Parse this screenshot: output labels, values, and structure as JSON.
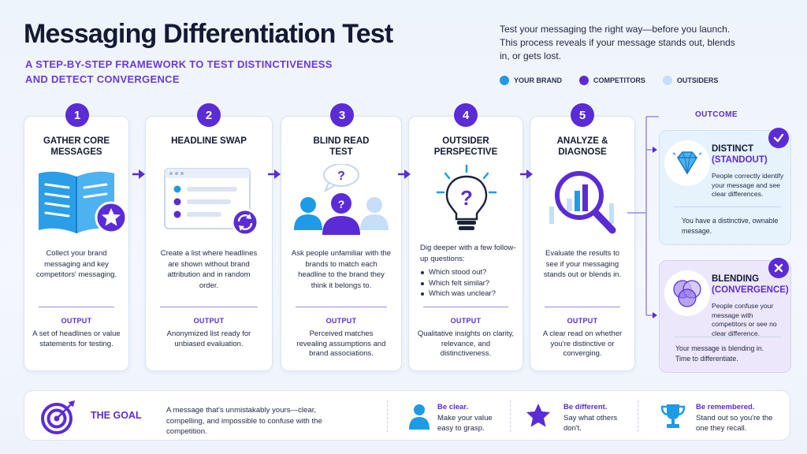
{
  "header": {
    "title": "Messaging Differentiation Test",
    "subtitle": "A STEP-BY-STEP FRAMEWORK TO TEST DISTINCTIVENESS AND DETECT CONVERGENCE",
    "intro": "Test your messaging the right way—before you launch. This process reveals if your message stands out, blends in, or gets lost."
  },
  "legend": [
    {
      "label": "YOUR BRAND",
      "color": "#1e9be6"
    },
    {
      "label": "COMPETITORS",
      "color": "#5b2bd6"
    },
    {
      "label": "OUTSIDERS",
      "color": "#c6def7"
    }
  ],
  "output_label": "OUTPUT",
  "steps": [
    {
      "number": "1",
      "title": "GATHER CORE MESSAGES",
      "icon": "open-book-star-icon",
      "description": "Collect your brand messaging and key competitors' messaging.",
      "output": "A set of headlines or value statements for testing."
    },
    {
      "number": "2",
      "title": "HEADLINE SWAP",
      "icon": "shuffled-list-window-icon",
      "description": "Create a list where headlines are shown without brand attribution and in random order.",
      "output": "Anonymized list ready for unbiased evaluation."
    },
    {
      "number": "3",
      "title": "BLIND READ TEST",
      "icon": "people-question-icon",
      "description": "Ask people unfamiliar with the brands to match each headline to the brand they think it belongs to.",
      "output": "Perceived matches revealing assumptions and brand associations."
    },
    {
      "number": "4",
      "title": "OUTSIDER PERSPECTIVE",
      "icon": "lightbulb-question-icon",
      "description": "Dig deeper with a few follow-up questions:",
      "questions": [
        "Which stood out?",
        "Which felt similar?",
        "Which was unclear?"
      ],
      "output": "Qualitative insights on clarity, relevance, and distinctiveness."
    },
    {
      "number": "5",
      "title": "ANALYZE & DIAGNOSE",
      "icon": "magnifier-chart-icon",
      "description": "Evaluate the results to see if your messaging stands out or blends in.",
      "output": "A clear read on whether you're distinctive or converging."
    }
  ],
  "outcome": {
    "label": "OUTCOME",
    "distinct": {
      "title": "DISTINCT",
      "sub": "(STANDOUT)",
      "description": "People correctly identify your message and see clear differences.",
      "result": "You have a distinctive, ownable message.",
      "icon": "diamond-icon"
    },
    "blending": {
      "title": "BLENDING",
      "sub": "(CONVERGENCE)",
      "description": "People confuse your message with competitors or see no clear difference.",
      "result": "Your message is blending in. Time to differentiate.",
      "icon": "overlapping-circles-icon"
    }
  },
  "goal": {
    "title": "THE GOAL",
    "text": "A message that's unmistakably yours—clear, compelling, and impossible to confuse with the competition.",
    "pillars": [
      {
        "title": "Be clear.",
        "text": "Make your value easy to grasp.",
        "icon": "person-icon"
      },
      {
        "title": "Be different.",
        "text": "Say what others don't.",
        "icon": "star-icon"
      },
      {
        "title": "Be remembered.",
        "text": "Stand out so you're the one they recall.",
        "icon": "trophy-icon"
      }
    ]
  },
  "colors": {
    "primary": "#5b2bd6",
    "brand_blue": "#1e9be6",
    "light_blue": "#c6def7"
  }
}
